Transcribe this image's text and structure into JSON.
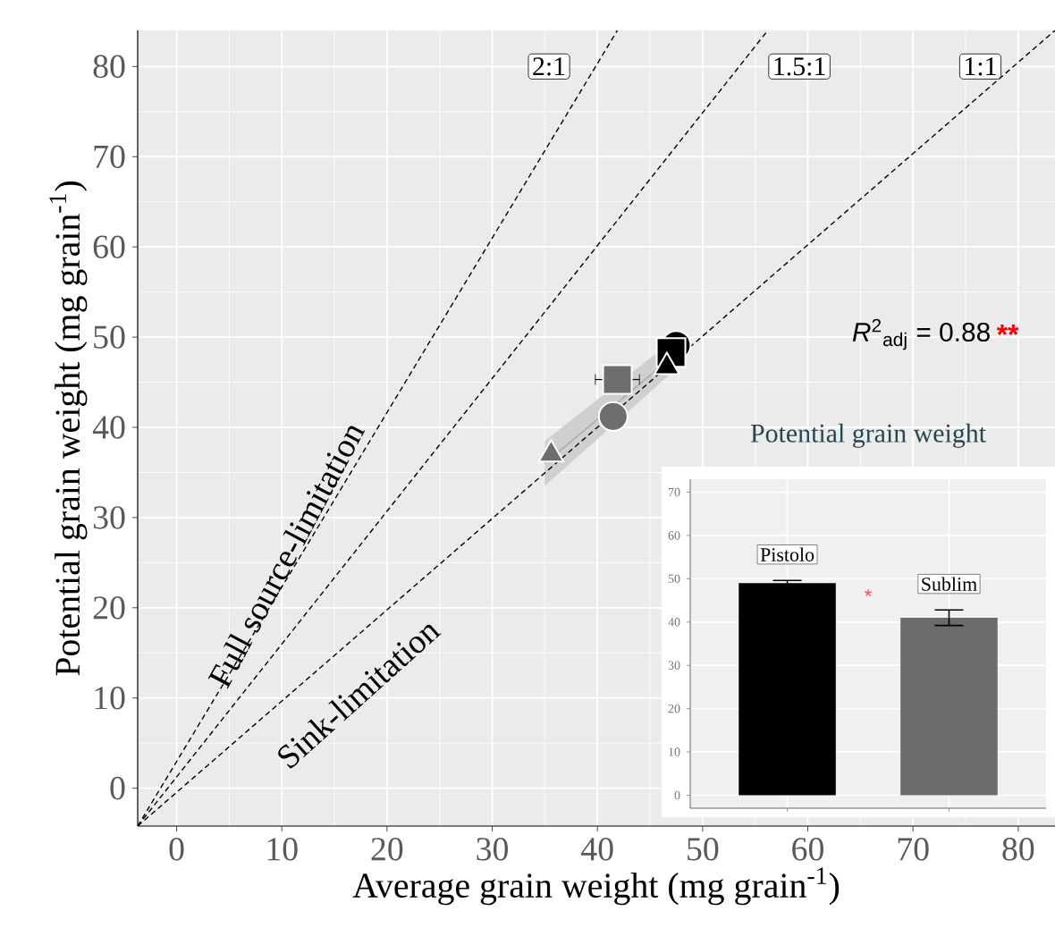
{
  "chart_data": [
    {
      "type": "scatter",
      "xlabel": "Average grain weight (mg grain$^{-1}$)",
      "ylabel": "Potential grain weight (mg grain$^{-1}$)",
      "xlim": [
        -3.7,
        83.5
      ],
      "ylim": [
        -4.2,
        84
      ],
      "xticks": [
        0,
        10,
        20,
        30,
        40,
        50,
        60,
        70,
        80
      ],
      "yticks": [
        0,
        10,
        20,
        30,
        40,
        50,
        60,
        70,
        80
      ],
      "grid": true,
      "series": [
        {
          "type": "line",
          "color": "#a8a8a8",
          "x": [
            35,
            47
          ],
          "values": [
            36,
            47.7
          ],
          "lower": [
            33.5,
            46
          ],
          "upper": [
            38.5,
            49.5
          ]
        },
        {
          "type": "line",
          "color": "#000000",
          "line_style": "dashed",
          "x": [
            -3.7,
            41.9
          ],
          "values": [
            -4.2,
            84
          ]
        },
        {
          "type": "line",
          "color": "#000000",
          "line_style": "dashed",
          "x": [
            -3.7,
            56.2
          ],
          "values": [
            -4.2,
            84
          ]
        },
        {
          "type": "line",
          "color": "#000000",
          "line_style": "dashed",
          "x": [
            -3.7,
            83.5
          ],
          "values": [
            -4.2,
            84
          ]
        },
        {
          "type": "scatter",
          "color": "#6e6e6e",
          "marker": "triangle",
          "x": [
            35.6
          ],
          "values": [
            37.0
          ]
        },
        {
          "type": "scatter",
          "color": "#6e6e6e",
          "marker": "circle",
          "x": [
            41.5
          ],
          "values": [
            41.2
          ]
        },
        {
          "type": "scatter",
          "color": "#6e6e6e",
          "marker": "square",
          "x": [
            41.9
          ],
          "values": [
            45.3
          ],
          "xerrors": [
            2.1
          ]
        },
        {
          "type": "scatter",
          "color": "#000000",
          "marker": "circle",
          "x": [
            47.5
          ],
          "values": [
            49.1
          ]
        },
        {
          "type": "scatter",
          "color": "#000000",
          "marker": "square",
          "x": [
            47.0
          ],
          "values": [
            48.3
          ]
        },
        {
          "type": "scatter",
          "color": "#000000",
          "marker": "triangle",
          "x": [
            46.6
          ],
          "values": [
            46.7
          ]
        }
      ],
      "annotations": [
        {
          "text": "2:1",
          "x": 35.4,
          "y": 80
        },
        {
          "text": "1.5:1",
          "x": 59.2,
          "y": 80
        },
        {
          "text": "1:1",
          "x": 76.4,
          "y": 80
        },
        "Full source-limitation",
        "Sink-limitation",
        "*R*$^{2}$$_{adj}$ = 0.88",
        "**"
      ]
    },
    {
      "type": "bar",
      "title": "Potential grain weight",
      "categories": [
        "Pistolo",
        "Sublim"
      ],
      "values": [
        49,
        41
      ],
      "errors": [
        0.6,
        1.8
      ],
      "colors": [
        "#000000",
        "#6b6b6b"
      ],
      "ylim": [
        -3,
        73
      ],
      "yticks": [
        0,
        10,
        20,
        30,
        40,
        50,
        60,
        70
      ],
      "grid": true,
      "tick_labels": "y",
      "annotations": [
        "*"
      ]
    }
  ]
}
